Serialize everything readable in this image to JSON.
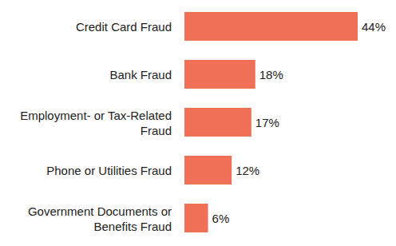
{
  "chart_data": {
    "type": "bar",
    "orientation": "horizontal",
    "categories": [
      "Credit Card Fraud",
      "Bank Fraud",
      "Employment- or Tax-Related Fraud",
      "Phone or Utilities Fraud",
      "Government Documents or Benefits Fraud"
    ],
    "values": [
      44,
      18,
      17,
      12,
      6
    ],
    "value_labels": [
      "44%",
      "18%",
      "17%",
      "12%",
      "6%"
    ],
    "color": "#f07057",
    "xlim": [
      0,
      44
    ],
    "data_labels": true,
    "tick_labels": "y",
    "grid": false
  }
}
